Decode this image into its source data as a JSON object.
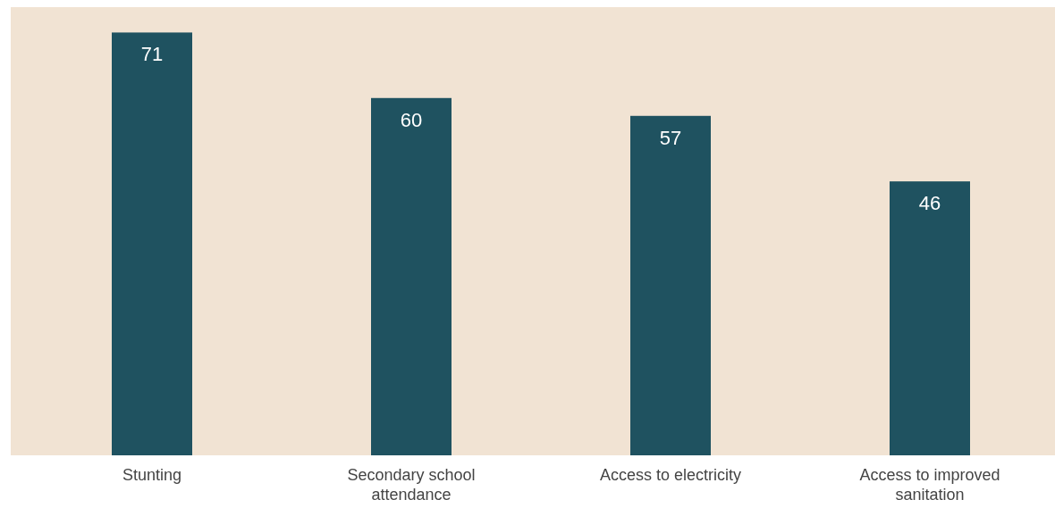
{
  "chart_data": {
    "type": "bar",
    "categories": [
      "Stunting",
      "Secondary school attendance",
      "Access to electricity",
      "Access to improved sanitation"
    ],
    "values": [
      71,
      60,
      57,
      46
    ],
    "color": "#1f5260",
    "data_labels": true
  }
}
